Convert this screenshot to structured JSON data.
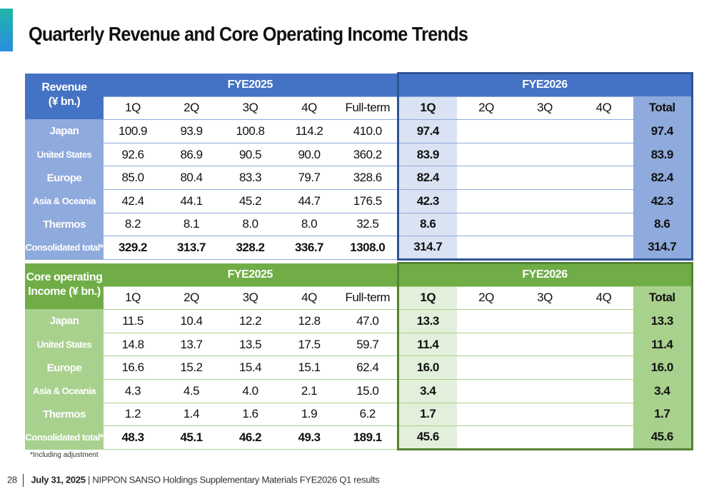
{
  "title": "Quarterly Revenue and Core Operating Income Trends",
  "tables": [
    {
      "label_lines": [
        "Revenue",
        "(¥ bn.)"
      ],
      "fy1": "FYE2025",
      "fy2": "FYE2026",
      "cols": [
        "1Q",
        "2Q",
        "3Q",
        "4Q",
        "Full-term",
        "1Q",
        "2Q",
        "3Q",
        "4Q",
        "Total"
      ],
      "rows": [
        {
          "label": "Japan",
          "values": [
            "100.9",
            "93.9",
            "100.8",
            "114.2",
            "410.0",
            "97.4",
            "",
            "",
            "",
            "97.4"
          ]
        },
        {
          "label": "United States",
          "values": [
            "92.6",
            "86.9",
            "90.5",
            "90.0",
            "360.2",
            "83.9",
            "",
            "",
            "",
            "83.9"
          ]
        },
        {
          "label": "Europe",
          "values": [
            "85.0",
            "80.4",
            "83.3",
            "79.7",
            "328.6",
            "82.4",
            "",
            "",
            "",
            "82.4"
          ]
        },
        {
          "label": "Asia & Oceania",
          "values": [
            "42.4",
            "44.1",
            "45.2",
            "44.7",
            "176.5",
            "42.3",
            "",
            "",
            "",
            "42.3"
          ]
        },
        {
          "label": "Thermos",
          "values": [
            "8.2",
            "8.1",
            "8.0",
            "8.0",
            "32.5",
            "8.6",
            "",
            "",
            "",
            "8.6"
          ]
        },
        {
          "label": "Consolidated total*",
          "values": [
            "329.2",
            "313.7",
            "328.2",
            "336.7",
            "1308.0",
            "314.7",
            "",
            "",
            "",
            "314.7"
          ]
        }
      ]
    },
    {
      "label_lines": [
        "Core operating",
        "Income (¥ bn.)"
      ],
      "fy1": "FYE2025",
      "fy2": "FYE2026",
      "cols": [
        "1Q",
        "2Q",
        "3Q",
        "4Q",
        "Full-term",
        "1Q",
        "2Q",
        "3Q",
        "4Q",
        "Total"
      ],
      "rows": [
        {
          "label": "Japan",
          "values": [
            "11.5",
            "10.4",
            "12.2",
            "12.8",
            "47.0",
            "13.3",
            "",
            "",
            "",
            "13.3"
          ]
        },
        {
          "label": "United States",
          "values": [
            "14.8",
            "13.7",
            "13.5",
            "17.5",
            "59.7",
            "11.4",
            "",
            "",
            "",
            "11.4"
          ]
        },
        {
          "label": "Europe",
          "values": [
            "16.6",
            "15.2",
            "15.4",
            "15.1",
            "62.4",
            "16.0",
            "",
            "",
            "",
            "16.0"
          ]
        },
        {
          "label": "Asia & Oceania",
          "values": [
            "4.3",
            "4.5",
            "4.0",
            "2.1",
            "15.0",
            "3.4",
            "",
            "",
            "",
            "3.4"
          ]
        },
        {
          "label": "Thermos",
          "values": [
            "1.2",
            "1.4",
            "1.6",
            "1.9",
            "6.2",
            "1.7",
            "",
            "",
            "",
            "1.7"
          ]
        },
        {
          "label": "Consolidated total*",
          "values": [
            "48.3",
            "45.1",
            "46.2",
            "49.3",
            "189.1",
            "45.6",
            "",
            "",
            "",
            "45.6"
          ]
        }
      ]
    }
  ],
  "note": "*Including adjustment",
  "footer": {
    "page": "28",
    "date": "July 31, 2025",
    "text": "| NIPPON SANSO Holdings Supplementary Materials FYE2026 Q1 results"
  }
}
